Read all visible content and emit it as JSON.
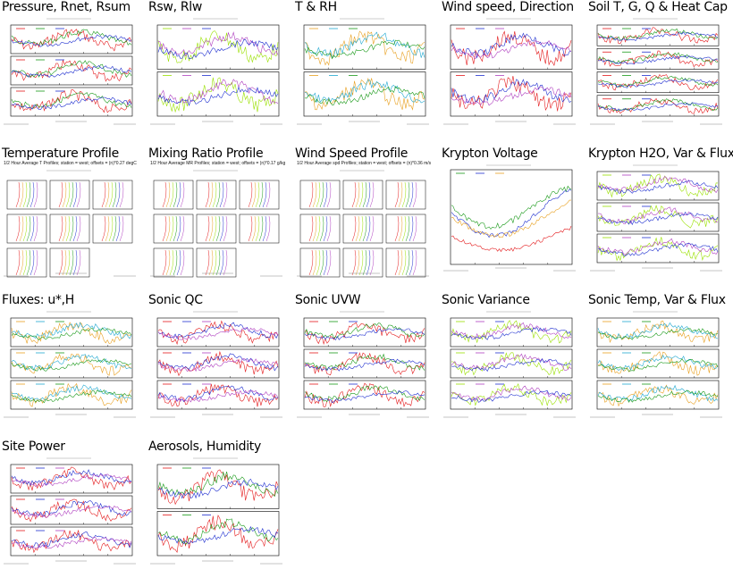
{
  "tiles": [
    {
      "id": "pressure",
      "title": "Pressure, Rnet, Rsum",
      "kind": "panels3"
    },
    {
      "id": "rsw",
      "title": "Rsw, Rlw",
      "kind": "panels2"
    },
    {
      "id": "trh",
      "title": "T & RH",
      "kind": "panels2"
    },
    {
      "id": "wind",
      "title": "Wind speed, Direction",
      "kind": "panels2"
    },
    {
      "id": "soil",
      "title": "Soil T, G, Q & Heat Cap",
      "kind": "panels4"
    },
    {
      "id": "tprof",
      "title": "Temperature Profile",
      "kind": "profile",
      "subtitle": "1/2 Hour Average T Profiles; station = west; offsets = (n)*0.27 degC"
    },
    {
      "id": "mrprof",
      "title": "Mixing Ratio Profile",
      "kind": "profile",
      "subtitle": "1/2 Hour Average MR Profiles; station = west; offsets = (n)*0.17 g/kg"
    },
    {
      "id": "wsprof",
      "title": "Wind Speed Profile",
      "kind": "profile",
      "subtitle": "1/2 Hour Average spd Profiles; station = west; offsets = (n)*0.36 m/s"
    },
    {
      "id": "krypv",
      "title": "Krypton Voltage",
      "kind": "single"
    },
    {
      "id": "kryph2o",
      "title": "Krypton H2O, Var & Flux",
      "kind": "panels3"
    },
    {
      "id": "fluxes",
      "title": "Fluxes: u*,H",
      "kind": "panels3"
    },
    {
      "id": "sonicqc",
      "title": "Sonic QC",
      "kind": "panels3"
    },
    {
      "id": "sonicuvw",
      "title": "Sonic UVW",
      "kind": "panels3"
    },
    {
      "id": "sonicvar",
      "title": "Sonic Variance",
      "kind": "panels3"
    },
    {
      "id": "sonictemp",
      "title": "Sonic Temp, Var & Flux",
      "kind": "panels3"
    },
    {
      "id": "sitepower",
      "title": "Site Power",
      "kind": "panels3"
    },
    {
      "id": "aerosols",
      "title": "Aerosols, Humidity",
      "kind": "panels2"
    }
  ],
  "colors": {
    "red": "#e41a1c",
    "green": "#1a9a1a",
    "blue": "#2030d0",
    "lime": "#9ae000",
    "purple": "#b040c0",
    "orange": "#e8a020",
    "cyan": "#20a8d0",
    "black": "#000000"
  }
}
